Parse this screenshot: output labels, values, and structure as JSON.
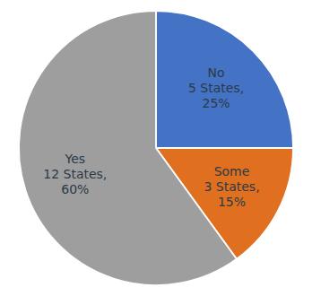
{
  "chart_data": {
    "type": "pie",
    "categories": [
      "No\n5 States,\n25%",
      "Some\n3 States,\n15%",
      "Yes\n12 States,\n60%"
    ],
    "values": [
      25,
      15,
      60
    ],
    "colors": [
      "#4472C4",
      "#E07020",
      "#9E9E9E"
    ]
  }
}
